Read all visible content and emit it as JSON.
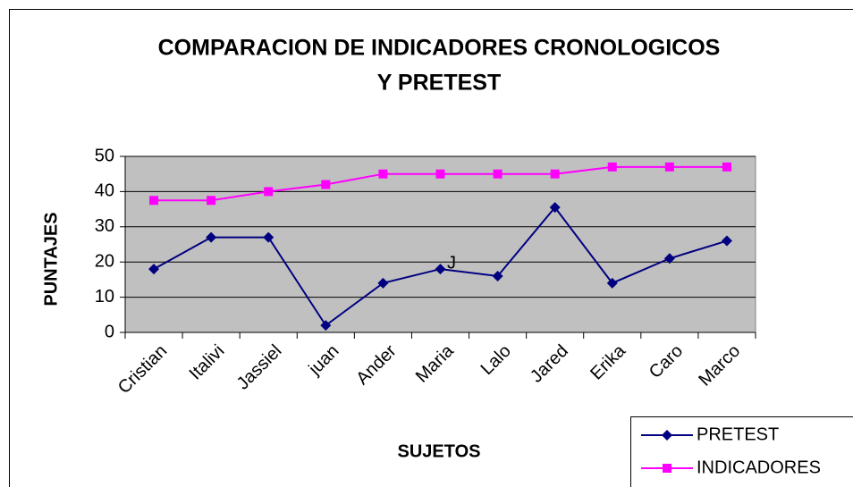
{
  "chart_data": {
    "type": "line",
    "title": [
      "COMPARACION DE INDICADORES CRONOLOGICOS",
      "Y PRETEST"
    ],
    "x_label": "SUJETOS",
    "y_label": "PUNTAJES",
    "categories": [
      "Cristian",
      "Italivi",
      "Jassiel",
      "juan",
      "Ander",
      "Maria",
      "Lalo",
      "Jared",
      "Erika",
      "Caro",
      "Marco"
    ],
    "series": [
      {
        "name": "PRETEST",
        "color": "#000080",
        "marker": "diamond",
        "values": [
          18,
          27,
          27,
          2,
          14,
          18,
          16,
          35.5,
          14,
          21,
          26
        ]
      },
      {
        "name": "INDICADORES",
        "color": "#ff00ff",
        "marker": "square",
        "values": [
          37.5,
          37.5,
          40,
          42,
          45,
          45,
          45,
          45,
          47,
          47,
          47
        ]
      }
    ],
    "annotations": [
      "J"
    ],
    "ylim": [
      0,
      50
    ],
    "yticks": [
      0,
      10,
      20,
      30,
      40,
      50
    ],
    "grid": true,
    "plot_background": "#c0c0c0",
    "legend": "bottom-right"
  }
}
